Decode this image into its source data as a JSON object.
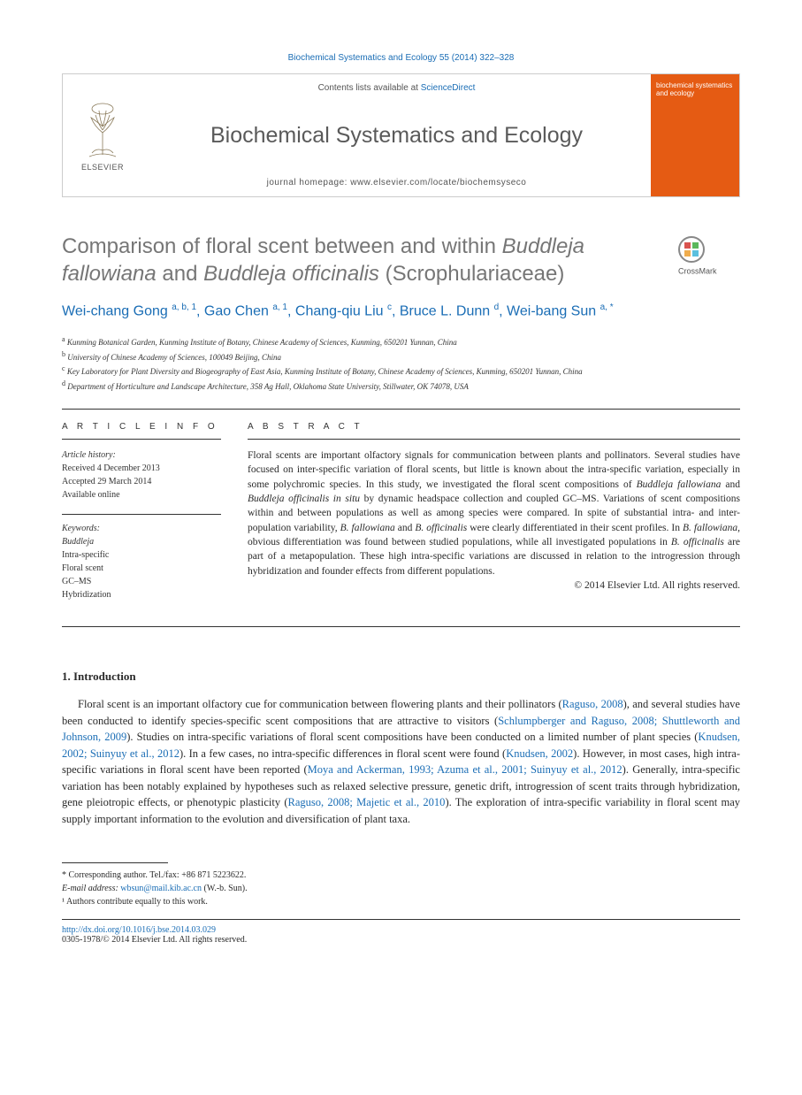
{
  "page_header": "Biochemical Systematics and Ecology 55 (2014) 322–328",
  "journal_box": {
    "contents_prefix": "Contents lists available at ",
    "contents_link": "ScienceDirect",
    "title": "Biochemical Systematics and Ecology",
    "homepage_prefix": "journal homepage: ",
    "homepage_url": "www.elsevier.com/locate/biochemsyseco",
    "elsevier_label": "ELSEVIER",
    "cover_text": "biochemical systematics and ecology"
  },
  "crossmark_label": "CrossMark",
  "article": {
    "title_html": "Comparison of floral scent between and within <em>Buddleja fallowiana</em> and <em>Buddleja officinalis</em> (Scrophulariaceae)",
    "authors_html": "Wei-chang Gong <sup>a, b, 1</sup>, Gao Chen <sup>a, 1</sup>, Chang-qiu Liu <sup>c</sup>, Bruce L. Dunn <sup>d</sup>, Wei-bang Sun <sup>a, *</sup>",
    "affiliations": [
      {
        "sup": "a",
        "text": "Kunming Botanical Garden, Kunming Institute of Botany, Chinese Academy of Sciences, Kunming, 650201 Yunnan, China"
      },
      {
        "sup": "b",
        "text": "University of Chinese Academy of Sciences, 100049 Beijing, China"
      },
      {
        "sup": "c",
        "text": "Key Laboratory for Plant Diversity and Biogeography of East Asia, Kunming Institute of Botany, Chinese Academy of Sciences, Kunming, 650201 Yunnan, China"
      },
      {
        "sup": "d",
        "text": "Department of Horticulture and Landscape Architecture, 358 Ag Hall, Oklahoma State University, Stillwater, OK 74078, USA"
      }
    ]
  },
  "article_info": {
    "heading": "A R T I C L E   I N F O",
    "history_label": "Article history:",
    "history": [
      "Received 4 December 2013",
      "Accepted 29 March 2014",
      "Available online"
    ],
    "keywords_label": "Keywords:",
    "keywords": [
      "Buddleja",
      "Intra-specific",
      "Floral scent",
      "GC–MS",
      "Hybridization"
    ]
  },
  "abstract": {
    "heading": "A B S T R A C T",
    "text_html": "Floral scents are important olfactory signals for communication between plants and pollinators. Several studies have focused on inter-specific variation of floral scents, but little is known about the intra-specific variation, especially in some polychromic species. In this study, we investigated the floral scent compositions of <em>Buddleja fallowiana</em> and <em>Buddleja officinalis in situ</em> by dynamic headspace collection and coupled GC–MS. Variations of scent compositions within and between populations as well as among species were compared. In spite of substantial intra- and inter-population variability, <em>B. fallowiana</em> and <em>B. officinalis</em> were clearly differentiated in their scent profiles. In <em>B. fallowiana</em>, obvious differentiation was found between studied populations, while all investigated populations in <em>B. officinalis</em> are part of a metapopulation. These high intra-specific variations are discussed in relation to the introgression through hybridization and founder effects from different populations.",
    "copyright": "© 2014 Elsevier Ltd. All rights reserved."
  },
  "intro": {
    "heading": "1. Introduction",
    "para_html": "Floral scent is an important olfactory cue for communication between flowering plants and their pollinators (<a class='cite'>Raguso, 2008</a>), and several studies have been conducted to identify species-specific scent compositions that are attractive to visitors (<a class='cite'>Schlumpberger and Raguso, 2008; Shuttleworth and Johnson, 2009</a>). Studies on intra-specific variations of floral scent compositions have been conducted on a limited number of plant species (<a class='cite'>Knudsen, 2002; Suinyuy et al., 2012</a>). In a few cases, no intra-specific differences in floral scent were found (<a class='cite'>Knudsen, 2002</a>). However, in most cases, high intra-specific variations in floral scent have been reported (<a class='cite'>Moya and Ackerman, 1993; Azuma et al., 2001; Suinyuy et al., 2012</a>). Generally, intra-specific variation has been notably explained by hypotheses such as relaxed selective pressure, genetic drift, introgression of scent traits through hybridization, gene pleiotropic effects, or phenotypic plasticity (<a class='cite'>Raguso, 2008; Majetic et al., 2010</a>). The exploration of intra-specific variability in floral scent may supply important information to the evolution and diversification of plant taxa."
  },
  "footnotes": {
    "corresponding": "* Corresponding author. Tel./fax: +86 871 5223622.",
    "email_label": "E-mail address:",
    "email": "wbsun@mail.kib.ac.cn",
    "email_suffix": " (W.-b. Sun).",
    "equal": "¹ Authors contribute equally to this work."
  },
  "bottom": {
    "doi": "http://dx.doi.org/10.1016/j.bse.2014.03.029",
    "issn": "0305-1978/© 2014 Elsevier Ltd. All rights reserved."
  },
  "colors": {
    "link": "#1a6db5",
    "text": "#2a2a2a",
    "heading": "#767676",
    "cover": "#e55b13"
  }
}
